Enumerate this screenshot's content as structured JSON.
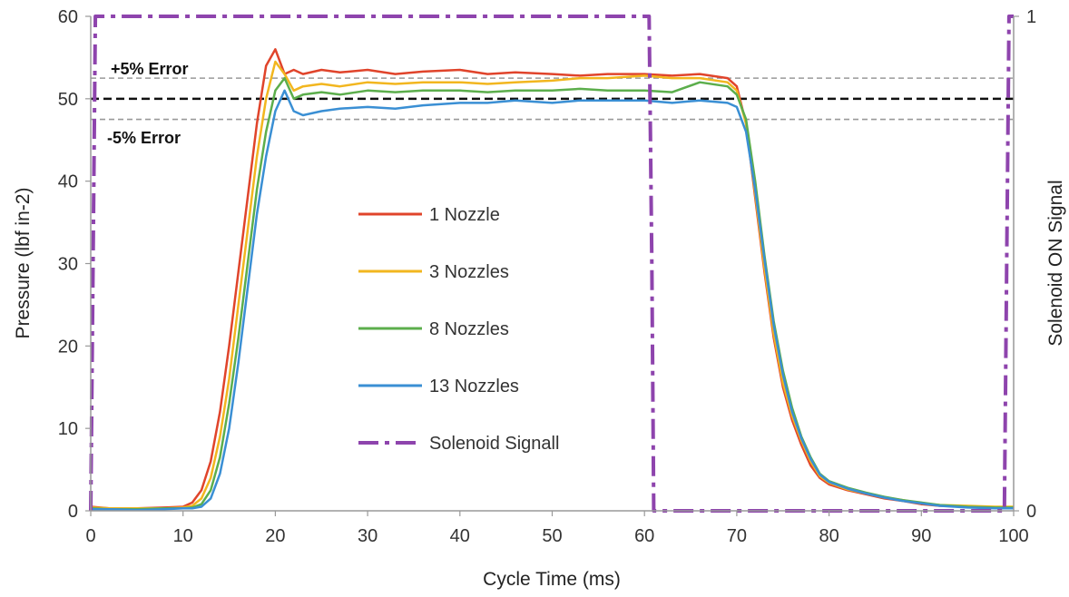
{
  "chart_data": {
    "type": "line",
    "title": "",
    "xlabel": "Cycle Time (ms)",
    "ylabel": "Pressure (lbf in-2)",
    "y2label": "Solenoid ON Signal",
    "xlim": [
      0,
      100
    ],
    "ylim": [
      0,
      60
    ],
    "y2lim": [
      0,
      1
    ],
    "x_ticks": [
      "0",
      "10",
      "20",
      "30",
      "40",
      "50",
      "60",
      "70",
      "80",
      "90",
      "100"
    ],
    "y_ticks": [
      "0",
      "10",
      "20",
      "30",
      "40",
      "50",
      "60"
    ],
    "y2_ticks": [
      "0",
      "1"
    ],
    "grid": false,
    "legend_position": "center",
    "reference_lines": [
      {
        "label": "+5% Error",
        "y": 52.5,
        "color": "#999999",
        "style": "dashed"
      },
      {
        "label": "",
        "y": 50,
        "color": "#111111",
        "style": "dashed"
      },
      {
        "label": "-5% Error",
        "y": 47.5,
        "color": "#999999",
        "style": "dashed"
      }
    ],
    "series": [
      {
        "name": "1 Nozzle",
        "color": "#e0442b",
        "axis": "left",
        "x": [
          0,
          2,
          5,
          8,
          10,
          11,
          12,
          13,
          14,
          15,
          16,
          17,
          18,
          19,
          20,
          21,
          22,
          23,
          25,
          27,
          30,
          33,
          36,
          40,
          43,
          46,
          50,
          53,
          56,
          60,
          63,
          66,
          69,
          70,
          71,
          72,
          73,
          74,
          75,
          76,
          77,
          78,
          79,
          80,
          82,
          84,
          86,
          88,
          90,
          92,
          95,
          98,
          100
        ],
        "y": [
          0.5,
          0.3,
          0.3,
          0.4,
          0.5,
          1.0,
          2.5,
          6.0,
          12.0,
          20.0,
          29.0,
          38.0,
          47.0,
          54.0,
          56.0,
          53.0,
          53.5,
          53.0,
          53.5,
          53.2,
          53.5,
          53.0,
          53.3,
          53.5,
          53.0,
          53.2,
          53.0,
          52.8,
          53.0,
          53.0,
          52.8,
          53.0,
          52.5,
          51.5,
          47.0,
          38.0,
          29.0,
          21.0,
          15.0,
          11.0,
          8.0,
          5.5,
          4.0,
          3.2,
          2.5,
          2.0,
          1.5,
          1.2,
          0.8,
          0.6,
          0.5,
          0.4,
          0.4
        ]
      },
      {
        "name": "3 Nozzles",
        "color": "#f2b61f",
        "axis": "left",
        "x": [
          0,
          2,
          5,
          8,
          10,
          11,
          12,
          13,
          14,
          15,
          16,
          17,
          18,
          19,
          20,
          21,
          22,
          23,
          25,
          27,
          30,
          33,
          36,
          40,
          43,
          46,
          50,
          53,
          56,
          60,
          63,
          66,
          69,
          70,
          71,
          72,
          73,
          74,
          75,
          76,
          77,
          78,
          79,
          80,
          82,
          84,
          86,
          88,
          90,
          92,
          95,
          98,
          100
        ],
        "y": [
          0.4,
          0.3,
          0.3,
          0.3,
          0.4,
          0.6,
          1.5,
          4.0,
          9.0,
          16.0,
          25.0,
          34.0,
          43.0,
          50.0,
          54.5,
          53.0,
          51.0,
          51.5,
          51.8,
          51.5,
          52.0,
          51.8,
          52.0,
          52.0,
          51.8,
          52.0,
          52.2,
          52.5,
          52.5,
          52.8,
          52.5,
          52.5,
          52.0,
          51.0,
          47.0,
          38.5,
          29.5,
          21.5,
          15.5,
          11.5,
          8.5,
          6.0,
          4.2,
          3.4,
          2.6,
          2.1,
          1.6,
          1.3,
          0.9,
          0.7,
          0.6,
          0.5,
          0.5
        ]
      },
      {
        "name": "8 Nozzles",
        "color": "#5cae4c",
        "axis": "left",
        "x": [
          0,
          2,
          5,
          8,
          10,
          11,
          12,
          13,
          14,
          15,
          16,
          17,
          18,
          19,
          20,
          21,
          22,
          23,
          25,
          27,
          30,
          33,
          36,
          40,
          43,
          46,
          50,
          53,
          56,
          60,
          63,
          66,
          69,
          70,
          71,
          72,
          73,
          74,
          75,
          76,
          77,
          78,
          79,
          80,
          82,
          84,
          86,
          88,
          90,
          92,
          95,
          98,
          100
        ],
        "y": [
          0.3,
          0.2,
          0.2,
          0.3,
          0.3,
          0.4,
          0.8,
          2.5,
          6.5,
          13.0,
          21.0,
          30.0,
          39.0,
          46.0,
          51.0,
          52.5,
          50.0,
          50.5,
          50.8,
          50.5,
          51.0,
          50.8,
          51.0,
          51.0,
          50.8,
          51.0,
          51.0,
          51.2,
          51.0,
          51.0,
          50.8,
          52.0,
          51.5,
          50.5,
          47.5,
          40.0,
          31.0,
          23.0,
          17.0,
          12.5,
          9.0,
          6.5,
          4.5,
          3.6,
          2.8,
          2.2,
          1.7,
          1.3,
          1.0,
          0.7,
          0.5,
          0.4,
          0.4
        ]
      },
      {
        "name": "13 Nozzles",
        "color": "#3a8fd4",
        "axis": "left",
        "x": [
          0,
          2,
          5,
          8,
          10,
          11,
          12,
          13,
          14,
          15,
          16,
          17,
          18,
          19,
          20,
          21,
          22,
          23,
          25,
          27,
          30,
          33,
          36,
          40,
          43,
          46,
          50,
          53,
          56,
          60,
          63,
          66,
          69,
          70,
          71,
          72,
          73,
          74,
          75,
          76,
          77,
          78,
          79,
          80,
          82,
          84,
          86,
          88,
          90,
          92,
          95,
          98,
          100
        ],
        "y": [
          0.2,
          0.2,
          0.1,
          0.2,
          0.3,
          0.3,
          0.5,
          1.5,
          4.5,
          10.0,
          18.0,
          27.0,
          36.0,
          43.0,
          48.5,
          51.0,
          48.5,
          48.0,
          48.5,
          48.8,
          49.0,
          48.8,
          49.2,
          49.5,
          49.5,
          49.8,
          49.5,
          49.8,
          49.8,
          49.8,
          49.5,
          49.8,
          49.5,
          49.0,
          46.0,
          39.0,
          30.5,
          22.5,
          16.5,
          12.0,
          8.8,
          6.3,
          4.4,
          3.5,
          2.7,
          2.1,
          1.6,
          1.2,
          0.9,
          0.6,
          0.4,
          0.3,
          0.3
        ]
      },
      {
        "name": "Solenoid Signall",
        "color": "#8e44ad",
        "axis": "right",
        "x": [
          0,
          0.5,
          1.2,
          60.5,
          60.8,
          61.0,
          99.0,
          99.5,
          100
        ],
        "y": [
          0,
          1,
          1,
          1,
          0.5,
          0,
          0,
          1,
          1
        ]
      }
    ]
  }
}
